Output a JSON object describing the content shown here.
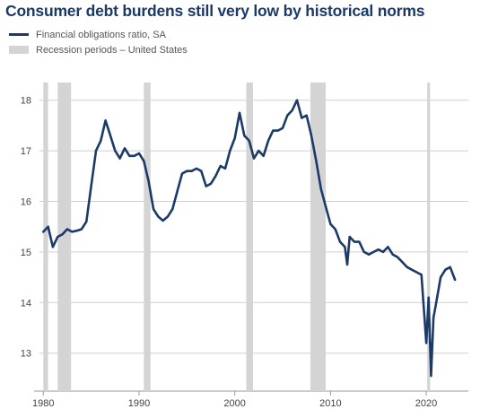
{
  "chart_data": {
    "type": "line",
    "title": "Consumer debt burdens still very low by historical norms",
    "legend": {
      "line_label": "Financial obligations ratio, SA",
      "band_label": "Recession periods – United States",
      "placement": "top-left"
    },
    "colors": {
      "line": "#1b3a68",
      "recession": "#d4d4d4",
      "grid": "#cfcfcf",
      "title": "#1b3a68"
    },
    "xlim": [
      1979.6,
      2024.4
    ],
    "ylim": [
      12.25,
      18.35
    ],
    "yticks": [
      13,
      14,
      15,
      16,
      17,
      18
    ],
    "xticks": [
      1980,
      1990,
      2000,
      2010,
      2020
    ],
    "grid": true,
    "recessions": [
      [
        1980.0,
        1980.5
      ],
      [
        1981.5,
        1982.9
      ],
      [
        1990.5,
        1991.2
      ],
      [
        2001.2,
        2001.9
      ],
      [
        2007.9,
        2009.5
      ],
      [
        2020.1,
        2020.4
      ]
    ],
    "series": [
      {
        "name": "Financial obligations ratio, SA",
        "x": [
          1980.0,
          1980.5,
          1981.0,
          1981.5,
          1982.0,
          1982.5,
          1983.0,
          1983.5,
          1984.0,
          1984.5,
          1985.0,
          1985.5,
          1986.0,
          1986.5,
          1987.0,
          1987.5,
          1988.0,
          1988.5,
          1989.0,
          1989.5,
          1990.0,
          1990.5,
          1991.0,
          1991.5,
          1992.0,
          1992.5,
          1993.0,
          1993.5,
          1994.0,
          1994.5,
          1995.0,
          1995.5,
          1996.0,
          1996.5,
          1997.0,
          1997.5,
          1998.0,
          1998.5,
          1999.0,
          1999.5,
          2000.0,
          2000.5,
          2001.0,
          2001.5,
          2002.0,
          2002.5,
          2003.0,
          2003.5,
          2004.0,
          2004.5,
          2005.0,
          2005.5,
          2006.0,
          2006.5,
          2007.0,
          2007.5,
          2008.0,
          2008.5,
          2009.0,
          2009.5,
          2010.0,
          2010.5,
          2011.0,
          2011.5,
          2011.75,
          2012.0,
          2012.5,
          2013.0,
          2013.5,
          2014.0,
          2014.5,
          2015.0,
          2015.5,
          2016.0,
          2016.5,
          2017.0,
          2017.5,
          2018.0,
          2018.5,
          2019.0,
          2019.5,
          2020.0,
          2020.25,
          2020.5,
          2020.75,
          2021.0,
          2021.5,
          2022.0,
          2022.5,
          2023.0
        ],
        "y": [
          15.4,
          15.5,
          15.1,
          15.3,
          15.35,
          15.45,
          15.4,
          15.42,
          15.45,
          15.6,
          16.3,
          17.0,
          17.2,
          17.6,
          17.3,
          17.0,
          16.85,
          17.05,
          16.9,
          16.9,
          16.95,
          16.8,
          16.4,
          15.85,
          15.7,
          15.62,
          15.7,
          15.85,
          16.2,
          16.55,
          16.6,
          16.6,
          16.65,
          16.6,
          16.3,
          16.35,
          16.5,
          16.7,
          16.65,
          17.0,
          17.25,
          17.75,
          17.3,
          17.2,
          16.85,
          17.0,
          16.9,
          17.2,
          17.4,
          17.4,
          17.45,
          17.7,
          17.8,
          18.0,
          17.65,
          17.7,
          17.3,
          16.8,
          16.25,
          15.9,
          15.55,
          15.45,
          15.2,
          15.1,
          14.75,
          15.3,
          15.2,
          15.2,
          15.0,
          14.95,
          15.0,
          15.05,
          15.0,
          15.1,
          14.95,
          14.9,
          14.8,
          14.7,
          14.65,
          14.6,
          14.55,
          13.2,
          14.1,
          12.55,
          13.7,
          13.95,
          14.5,
          14.65,
          14.7,
          14.45
        ]
      }
    ]
  }
}
